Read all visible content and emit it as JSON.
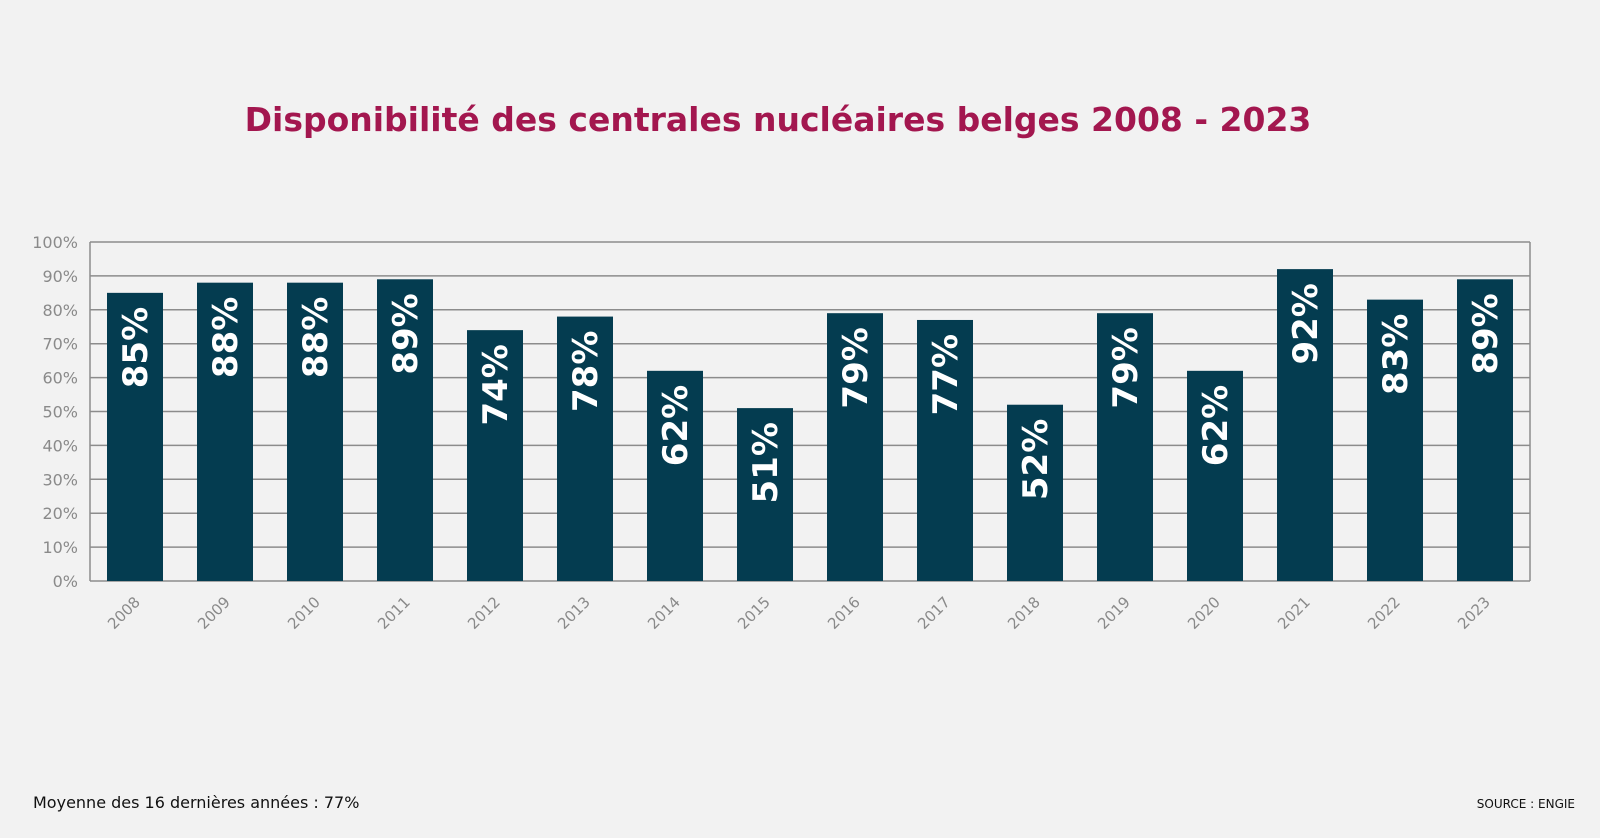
{
  "chart_data": {
    "type": "bar",
    "title": "Disponibilité des centrales nucléaires belges 2008 - 2023",
    "categories": [
      "2008",
      "2009",
      "2010",
      "2011",
      "2012",
      "2013",
      "2014",
      "2015",
      "2016",
      "2017",
      "2018",
      "2019",
      "2020",
      "2021",
      "2022",
      "2023"
    ],
    "values": [
      85,
      88,
      88,
      89,
      74,
      78,
      62,
      51,
      79,
      77,
      52,
      79,
      62,
      92,
      83,
      89
    ],
    "data_labels": [
      "85%",
      "88%",
      "88%",
      "89%",
      "74%",
      "78%",
      "62%",
      "51%",
      "79%",
      "77%",
      "52%",
      "79%",
      "62%",
      "92%",
      "83%",
      "89%"
    ],
    "yticks": [
      "0%",
      "10%",
      "20%",
      "30%",
      "40%",
      "50%",
      "60%",
      "70%",
      "80%",
      "90%",
      "100%"
    ],
    "ylim": [
      0,
      100
    ],
    "grid": true,
    "xlabel": "",
    "ylabel": "",
    "colors": {
      "bar": "#043c50",
      "title": "#a3174f",
      "grid": "#8c8c8c",
      "background": "#f2f2f2"
    }
  },
  "footer": {
    "average": "Moyenne des 16 dernières années : 77%",
    "source": "SOURCE : ENGIE"
  }
}
